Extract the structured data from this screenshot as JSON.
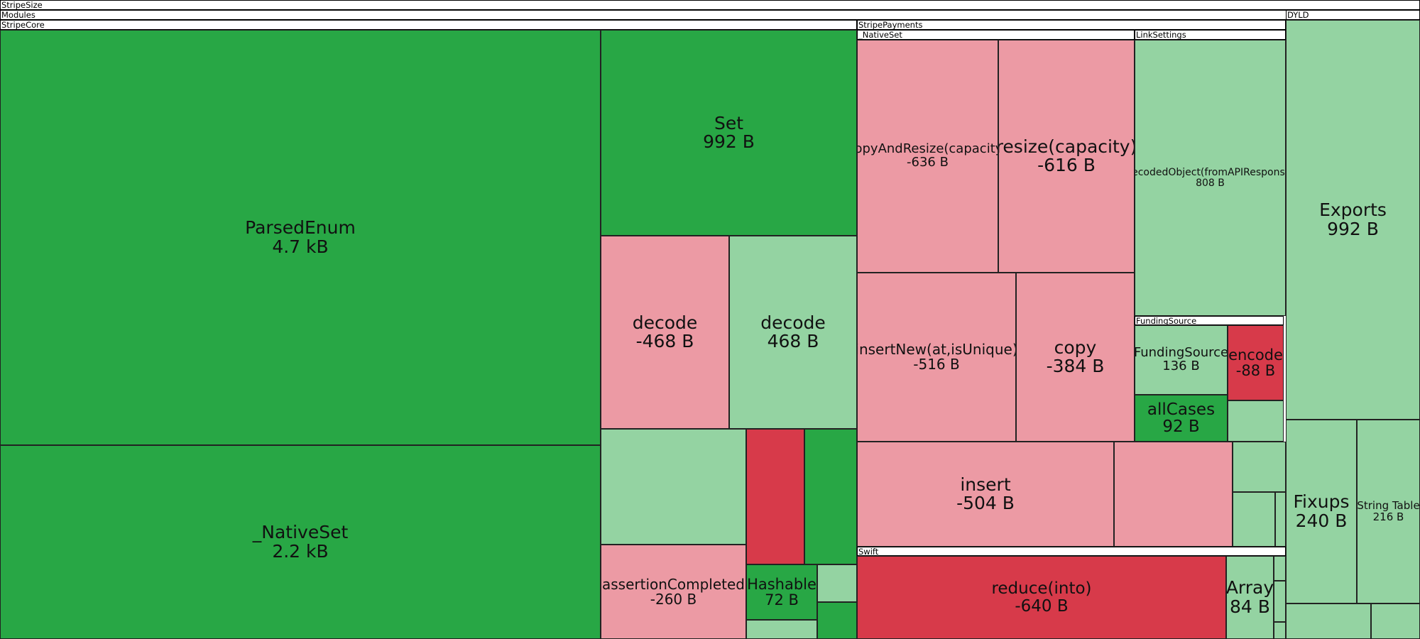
{
  "chart_data": {
    "type": "treemap",
    "title": "",
    "root": "StripeSize",
    "color_scale": {
      "strong_increase": "#28a745",
      "increase": "#94d3a2",
      "decrease": "#ec9aa4",
      "strong_decrease": "#d73a4a"
    },
    "groups": [
      {
        "name": "StripeSize",
        "parent": ""
      },
      {
        "name": "Modules",
        "parent": "StripeSize"
      },
      {
        "name": "StripeCore",
        "parent": "Modules"
      },
      {
        "name": "StripePayments",
        "parent": "Modules"
      },
      {
        "name": "_NativeSet",
        "parent": "StripePayments"
      },
      {
        "name": "LinkSettings",
        "parent": "StripePayments"
      },
      {
        "name": "FundingSource",
        "parent": "LinkSettings"
      },
      {
        "name": "Swift",
        "parent": "StripePayments"
      },
      {
        "name": "DYLD",
        "parent": "StripeSize"
      }
    ],
    "items": [
      {
        "name": "ParsedEnum",
        "size": "4.7 kB",
        "group": "StripeCore",
        "tone": "strong_increase"
      },
      {
        "name": "_NativeSet",
        "size": "2.2 kB",
        "group": "StripeCore",
        "tone": "strong_increase"
      },
      {
        "name": "Set",
        "size": "992 B",
        "group": "StripeCore",
        "tone": "strong_increase"
      },
      {
        "name": "decode",
        "size": "-468 B",
        "group": "StripeCore",
        "tone": "decrease"
      },
      {
        "name": "decode",
        "size": "468 B",
        "group": "StripeCore",
        "tone": "increase"
      },
      {
        "name": "",
        "size": "",
        "group": "StripeCore",
        "tone": "increase"
      },
      {
        "name": "",
        "size": "",
        "group": "StripeCore",
        "tone": "strong_decrease"
      },
      {
        "name": "",
        "size": "",
        "group": "StripeCore",
        "tone": "strong_increase"
      },
      {
        "name": "assertionCompleted",
        "size": "-260 B",
        "group": "StripeCore",
        "tone": "decrease"
      },
      {
        "name": "Hashable",
        "size": "72 B",
        "group": "StripeCore",
        "tone": "strong_increase"
      },
      {
        "name": "",
        "size": "",
        "group": "StripeCore",
        "tone": "increase"
      },
      {
        "name": "",
        "size": "",
        "group": "StripeCore",
        "tone": "strong_increase"
      },
      {
        "name": "",
        "size": "",
        "group": "StripeCore",
        "tone": "increase"
      },
      {
        "name": "copyAndResize(capacity)",
        "size": "-636 B",
        "group": "_NativeSet",
        "tone": "decrease"
      },
      {
        "name": "resize(capacity)",
        "size": "-616 B",
        "group": "_NativeSet",
        "tone": "decrease"
      },
      {
        "name": "insertNew(at,isUnique)",
        "size": "-516 B",
        "group": "_NativeSet",
        "tone": "decrease"
      },
      {
        "name": "copy",
        "size": "-384 B",
        "group": "_NativeSet",
        "tone": "decrease"
      },
      {
        "name": "insert",
        "size": "-504 B",
        "group": "_NativeSet",
        "tone": "decrease"
      },
      {
        "name": "",
        "size": "",
        "group": "_NativeSet",
        "tone": "decrease"
      },
      {
        "name": "decodedObject(fromAPIResponse)",
        "size": "808 B",
        "group": "LinkSettings",
        "tone": "increase"
      },
      {
        "name": "FundingSource",
        "size": "136 B",
        "group": "FundingSource",
        "tone": "increase"
      },
      {
        "name": "encode",
        "size": "-88 B",
        "group": "FundingSource",
        "tone": "strong_decrease"
      },
      {
        "name": "allCases",
        "size": "92 B",
        "group": "FundingSource",
        "tone": "strong_increase"
      },
      {
        "name": "",
        "size": "",
        "group": "FundingSource",
        "tone": "increase"
      },
      {
        "name": "",
        "size": "",
        "group": "StripePayments",
        "tone": "increase"
      },
      {
        "name": "",
        "size": "",
        "group": "StripePayments",
        "tone": "increase"
      },
      {
        "name": "",
        "size": "",
        "group": "StripePayments",
        "tone": "increase"
      },
      {
        "name": "reduce(into)",
        "size": "-640 B",
        "group": "Swift",
        "tone": "strong_decrease"
      },
      {
        "name": "Array",
        "size": "84 B",
        "group": "Swift",
        "tone": "increase"
      },
      {
        "name": "",
        "size": "",
        "group": "Swift",
        "tone": "increase"
      },
      {
        "name": "",
        "size": "",
        "group": "Swift",
        "tone": "increase"
      },
      {
        "name": "",
        "size": "",
        "group": "Swift",
        "tone": "increase"
      },
      {
        "name": "Exports",
        "size": "992 B",
        "group": "DYLD",
        "tone": "increase"
      },
      {
        "name": "Fixups",
        "size": "240 B",
        "group": "DYLD",
        "tone": "increase"
      },
      {
        "name": "String Table",
        "size": "216 B",
        "group": "DYLD",
        "tone": "increase"
      },
      {
        "name": "",
        "size": "",
        "group": "DYLD",
        "tone": "increase"
      },
      {
        "name": "",
        "size": "",
        "group": "DYLD",
        "tone": "increase"
      }
    ]
  }
}
